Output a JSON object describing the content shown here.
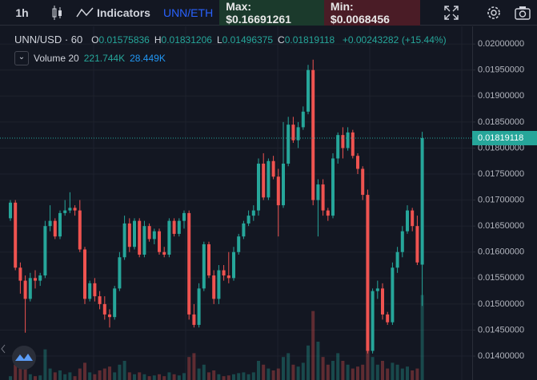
{
  "toolbar": {
    "interval": "1h",
    "indicators": "Indicators",
    "pair": "UNN/ETH",
    "max": "Max: $0.16691261",
    "min": "Min: $0.0068456"
  },
  "chart_data": {
    "type": "candlestick",
    "symbol": "UNN/USD",
    "interval": "60",
    "ohlc_labels": [
      "O",
      "H",
      "L",
      "C"
    ],
    "change": "+0.00243282",
    "change_pct": "(+15.44%)",
    "up_color": "#26a69a",
    "down_color": "#ef5350",
    "candles": [
      [
        0.01665,
        0.017,
        0.0166,
        0.01695
      ],
      [
        0.01695,
        0.017,
        0.01565,
        0.0157
      ],
      [
        0.0157,
        0.0158,
        0.0152,
        0.01545
      ],
      [
        0.01545,
        0.01555,
        0.01445,
        0.0151
      ],
      [
        0.0151,
        0.0156,
        0.01505,
        0.0155
      ],
      [
        0.0155,
        0.01565,
        0.0153,
        0.01545
      ],
      [
        0.01545,
        0.0156,
        0.01535,
        0.01555
      ],
      [
        0.01555,
        0.0166,
        0.0155,
        0.0165
      ],
      [
        0.0165,
        0.0169,
        0.0164,
        0.0166
      ],
      [
        0.0166,
        0.01665,
        0.01625,
        0.0163
      ],
      [
        0.0163,
        0.0168,
        0.01625,
        0.01675
      ],
      [
        0.01675,
        0.017,
        0.0167,
        0.0168
      ],
      [
        0.0168,
        0.01715,
        0.01675,
        0.01685
      ],
      [
        0.01685,
        0.0169,
        0.0167,
        0.0168
      ],
      [
        0.0168,
        0.017,
        0.016,
        0.01605
      ],
      [
        0.01605,
        0.0161,
        0.015,
        0.0151
      ],
      [
        0.0151,
        0.01545,
        0.01505,
        0.0154
      ],
      [
        0.0154,
        0.0155,
        0.01505,
        0.01515
      ],
      [
        0.01515,
        0.01525,
        0.0149,
        0.015
      ],
      [
        0.015,
        0.01515,
        0.0147,
        0.0148
      ],
      [
        0.0148,
        0.0149,
        0.01455,
        0.01475
      ],
      [
        0.01475,
        0.01535,
        0.0147,
        0.0153
      ],
      [
        0.0153,
        0.016,
        0.01525,
        0.0159
      ],
      [
        0.0159,
        0.0167,
        0.01585,
        0.01655
      ],
      [
        0.01655,
        0.01665,
        0.016,
        0.0161
      ],
      [
        0.0161,
        0.01665,
        0.01605,
        0.0166
      ],
      [
        0.0166,
        0.01665,
        0.0159,
        0.01595
      ],
      [
        0.01595,
        0.0166,
        0.0159,
        0.0165
      ],
      [
        0.0165,
        0.01655,
        0.0162,
        0.01625
      ],
      [
        0.01625,
        0.01645,
        0.01615,
        0.0164
      ],
      [
        0.0164,
        0.01645,
        0.01595,
        0.016
      ],
      [
        0.016,
        0.0161,
        0.0159,
        0.01595
      ],
      [
        0.01595,
        0.01665,
        0.0159,
        0.0166
      ],
      [
        0.0166,
        0.01665,
        0.0163,
        0.01635
      ],
      [
        0.01635,
        0.01665,
        0.0163,
        0.0166
      ],
      [
        0.0166,
        0.0168,
        0.01645,
        0.01675
      ],
      [
        0.01675,
        0.0168,
        0.0147,
        0.0148
      ],
      [
        0.0148,
        0.015,
        0.01455,
        0.0146
      ],
      [
        0.0146,
        0.0154,
        0.01455,
        0.0153
      ],
      [
        0.0153,
        0.0162,
        0.01525,
        0.01615
      ],
      [
        0.01615,
        0.0162,
        0.0155,
        0.01555
      ],
      [
        0.01555,
        0.01565,
        0.015,
        0.0151
      ],
      [
        0.0151,
        0.01575,
        0.015,
        0.01565
      ],
      [
        0.01565,
        0.01575,
        0.01545,
        0.01555
      ],
      [
        0.01555,
        0.016,
        0.0154,
        0.0155
      ],
      [
        0.0155,
        0.0161,
        0.01545,
        0.016
      ],
      [
        0.016,
        0.01635,
        0.01595,
        0.0163
      ],
      [
        0.0163,
        0.0166,
        0.01625,
        0.01655
      ],
      [
        0.01655,
        0.0168,
        0.0165,
        0.0167
      ],
      [
        0.0167,
        0.0169,
        0.0166,
        0.0168
      ],
      [
        0.0168,
        0.0178,
        0.0167,
        0.0177
      ],
      [
        0.0177,
        0.0179,
        0.017,
        0.01705
      ],
      [
        0.01705,
        0.0178,
        0.017,
        0.01775
      ],
      [
        0.01775,
        0.01785,
        0.0174,
        0.01745
      ],
      [
        0.01745,
        0.0176,
        0.0163,
        0.0169
      ],
      [
        0.0169,
        0.0185,
        0.01685,
        0.0177
      ],
      [
        0.0177,
        0.0186,
        0.01765,
        0.01845
      ],
      [
        0.01845,
        0.0186,
        0.0181,
        0.01815
      ],
      [
        0.01815,
        0.0185,
        0.018,
        0.0184
      ],
      [
        0.0184,
        0.0188,
        0.01835,
        0.0187
      ],
      [
        0.0187,
        0.0196,
        0.01865,
        0.0195
      ],
      [
        0.0195,
        0.0197,
        0.0169,
        0.017
      ],
      [
        0.017,
        0.0174,
        0.0163,
        0.0173
      ],
      [
        0.0173,
        0.0174,
        0.0167,
        0.0168
      ],
      [
        0.0168,
        0.01685,
        0.0166,
        0.0167
      ],
      [
        0.0167,
        0.0179,
        0.01665,
        0.0178
      ],
      [
        0.0178,
        0.0183,
        0.0177,
        0.01825
      ],
      [
        0.01825,
        0.0184,
        0.0178,
        0.018
      ],
      [
        0.018,
        0.0184,
        0.01795,
        0.0183
      ],
      [
        0.0183,
        0.01835,
        0.0178,
        0.01785
      ],
      [
        0.01785,
        0.0179,
        0.0175,
        0.0176
      ],
      [
        0.0176,
        0.01765,
        0.017,
        0.0171
      ],
      [
        0.0171,
        0.0172,
        0.01405,
        0.0141
      ],
      [
        0.0141,
        0.0153,
        0.01405,
        0.01525
      ],
      [
        0.01525,
        0.01545,
        0.0151,
        0.0153
      ],
      [
        0.0153,
        0.0154,
        0.0147,
        0.0148
      ],
      [
        0.0148,
        0.01485,
        0.0146,
        0.01465
      ],
      [
        0.01465,
        0.0158,
        0.0146,
        0.0157
      ],
      [
        0.0157,
        0.0161,
        0.0156,
        0.016
      ],
      [
        0.016,
        0.0165,
        0.0159,
        0.0164
      ],
      [
        0.0164,
        0.0169,
        0.01635,
        0.0168
      ],
      [
        0.0168,
        0.01685,
        0.0164,
        0.0165
      ],
      [
        0.0165,
        0.0167,
        0.01575,
        0.0158
      ],
      [
        0.01575836,
        0.01831206,
        0.01496375,
        0.01819118
      ]
    ],
    "ylim": [
      0.01354,
      0.02034
    ],
    "yticks": [
      {
        "value": 0.014,
        "label": "0.01400000"
      },
      {
        "value": 0.0145,
        "label": "0.01450000"
      },
      {
        "value": 0.015,
        "label": "0.01500000"
      },
      {
        "value": 0.0155,
        "label": "0.01550000"
      },
      {
        "value": 0.016,
        "label": "0.01600000"
      },
      {
        "value": 0.0165,
        "label": "0.01650000"
      },
      {
        "value": 0.017,
        "label": "0.01700000"
      },
      {
        "value": 0.0175,
        "label": "0.01750000"
      },
      {
        "value": 0.018,
        "label": "0.01800000"
      },
      {
        "value": 0.0185,
        "label": "0.01850000"
      },
      {
        "value": 0.019,
        "label": "0.01900000"
      },
      {
        "value": 0.0195,
        "label": "0.01950000"
      },
      {
        "value": 0.02,
        "label": "0.02000000"
      }
    ],
    "grid": true,
    "volume": {
      "name": "Volume 20",
      "last_label": "221.744K",
      "ma_label": "28.449K",
      "vlim": [
        0,
        250
      ],
      "values": [
        10,
        40,
        30,
        50,
        15,
        10,
        12,
        80,
        30,
        20,
        25,
        15,
        20,
        10,
        30,
        45,
        20,
        15,
        25,
        30,
        35,
        20,
        40,
        50,
        20,
        15,
        20,
        15,
        10,
        12,
        15,
        10,
        20,
        15,
        12,
        18,
        60,
        70,
        30,
        40,
        20,
        25,
        15,
        10,
        12,
        15,
        18,
        20,
        15,
        20,
        50,
        40,
        30,
        25,
        30,
        60,
        70,
        40,
        35,
        45,
        90,
        180,
        100,
        60,
        40,
        50,
        70,
        50,
        40,
        30,
        35,
        40,
        150,
        60,
        40,
        50,
        30,
        45,
        40,
        30,
        35,
        25,
        30,
        221.744
      ]
    }
  }
}
